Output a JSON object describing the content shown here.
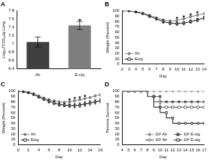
{
  "chart_data": [
    {
      "type": "bar",
      "title": "A",
      "y_label": "Log₁₀TCID₅₀/g Lung",
      "categories": [
        "Air",
        "E-cig"
      ],
      "values": [
        7.05,
        7.45
      ],
      "errors": [
        0.12,
        0.1
      ],
      "colors": [
        "#404040",
        "#7f7f7f"
      ],
      "ylim": [
        6.4,
        7.8
      ],
      "yticks": [
        6.4,
        6.6,
        6.8,
        7,
        7.2,
        7.4,
        7.6,
        7.8
      ],
      "annotations": [
        {
          "text": "*",
          "x": "E-cig"
        }
      ],
      "grid": false
    },
    {
      "type": "line",
      "title": "B",
      "x_label": "Day",
      "y_label": "Weight (Percent)",
      "x": [
        2,
        3,
        4,
        5,
        6,
        7,
        8,
        9,
        10,
        11,
        12,
        13,
        14
      ],
      "series": [
        {
          "name": "Air",
          "color": "#7f7f7f",
          "marker": "diamond",
          "line_style": "solid",
          "values": [
            100,
            100,
            99,
            96,
            92,
            87,
            83,
            81,
            82,
            85,
            89,
            92,
            95
          ],
          "errors": [
            0,
            0,
            1,
            1,
            1,
            2,
            2,
            2,
            2,
            2,
            2,
            2,
            2
          ]
        },
        {
          "name": "Ecig",
          "color": "#000000",
          "marker": "open_square",
          "line_style": "solid",
          "values": [
            100,
            100,
            98,
            95,
            90,
            85,
            80,
            77,
            76,
            77,
            80,
            83,
            87
          ],
          "errors": [
            0,
            0,
            1,
            1,
            2,
            2,
            3,
            3,
            3,
            3,
            3,
            3,
            3
          ]
        }
      ],
      "xlim": [
        2,
        14
      ],
      "xticks": [
        2,
        3,
        4,
        5,
        6,
        7,
        8,
        9,
        10,
        11,
        12,
        13,
        14
      ],
      "ylim": [
        0,
        100
      ],
      "yticks": [
        0,
        10,
        20,
        30,
        40,
        50,
        60,
        70,
        80,
        90,
        100
      ],
      "annotations": [
        {
          "text": "*",
          "x": 10
        },
        {
          "text": "*",
          "x": 11
        },
        {
          "text": "*",
          "x": 12
        },
        {
          "text": "*",
          "x": 13
        }
      ],
      "legend": "lower left",
      "grid": false
    },
    {
      "type": "line",
      "title": "C",
      "x_label": "Day",
      "y_label": "Weight (Percent)",
      "x": [
        0,
        1,
        2,
        3,
        4,
        5,
        6,
        7,
        8,
        9,
        10,
        11,
        12,
        13,
        14,
        15,
        16
      ],
      "series": [
        {
          "name": "Air",
          "color": "#7f7f7f",
          "marker": "diamond",
          "line_style": "solid",
          "values": [
            100,
            100,
            98,
            95,
            91,
            87,
            84,
            82,
            80,
            79,
            80,
            82,
            84,
            86,
            88,
            91,
            93
          ],
          "errors": [
            0,
            1,
            1,
            1,
            2,
            2,
            2,
            2,
            2,
            2,
            2,
            2,
            2,
            2,
            2,
            2,
            2
          ]
        },
        {
          "name": "Ecig",
          "color": "#000000",
          "marker": "open_square",
          "line_style": "solid",
          "values": [
            100,
            99,
            97,
            94,
            89,
            85,
            81,
            78,
            75,
            74,
            73,
            73,
            74,
            76,
            78,
            80,
            82
          ],
          "errors": [
            0,
            1,
            1,
            2,
            2,
            2,
            3,
            3,
            3,
            3,
            3,
            4,
            4,
            4,
            4,
            4,
            4
          ]
        }
      ],
      "xlim": [
        0,
        16
      ],
      "xticks": [
        0,
        2,
        4,
        6,
        8,
        10,
        12,
        14,
        16
      ],
      "ylim": [
        0,
        100
      ],
      "yticks": [
        0,
        10,
        20,
        30,
        40,
        50,
        60,
        70,
        80,
        90,
        100
      ],
      "annotations": [
        {
          "text": "*",
          "x": 10
        },
        {
          "text": "*",
          "x": 11
        },
        {
          "text": "*",
          "x": 12
        },
        {
          "text": "*",
          "x": 13
        }
      ],
      "legend": "lower left",
      "grid": false
    },
    {
      "type": "line",
      "title": "D",
      "x_label": "Day",
      "y_label": "Percent Survival",
      "x": [
        4,
        5,
        6,
        7,
        8,
        9,
        10,
        11,
        12,
        13,
        14,
        15,
        16,
        17
      ],
      "series": [
        {
          "name": "10² Air",
          "color": "#8c8c8c",
          "marker": "diamond",
          "line_style": "step",
          "values": [
            100,
            100,
            100,
            100,
            100,
            100,
            100,
            100,
            100,
            100,
            100,
            100,
            100,
            100
          ]
        },
        {
          "name": "10² E-cig",
          "color": "#555555",
          "marker": "square",
          "line_style": "step",
          "values": [
            100,
            100,
            100,
            100,
            100,
            90,
            90,
            80,
            80,
            80,
            80,
            80,
            80,
            80
          ]
        },
        {
          "name": "10³ Air",
          "color": "#333333",
          "marker": "open_circle",
          "line_style": "step",
          "values": [
            100,
            100,
            100,
            100,
            100,
            90,
            80,
            70,
            70,
            70,
            70,
            70,
            70,
            70
          ]
        },
        {
          "name": "10³ E-cig",
          "color": "#000000",
          "marker": "open_square",
          "line_style": "step",
          "values": [
            100,
            100,
            100,
            100,
            100,
            90,
            70,
            60,
            50,
            40,
            40,
            40,
            40,
            40
          ]
        }
      ],
      "xlim": [
        4,
        17
      ],
      "xticks": [
        4,
        5,
        6,
        7,
        8,
        9,
        10,
        11,
        12,
        13,
        14,
        15,
        16,
        17
      ],
      "ylim": [
        0,
        100
      ],
      "yticks": [
        0,
        10,
        20,
        30,
        40,
        50,
        60,
        70,
        80,
        90,
        100
      ],
      "legend": "lower right",
      "grid": false
    }
  ]
}
